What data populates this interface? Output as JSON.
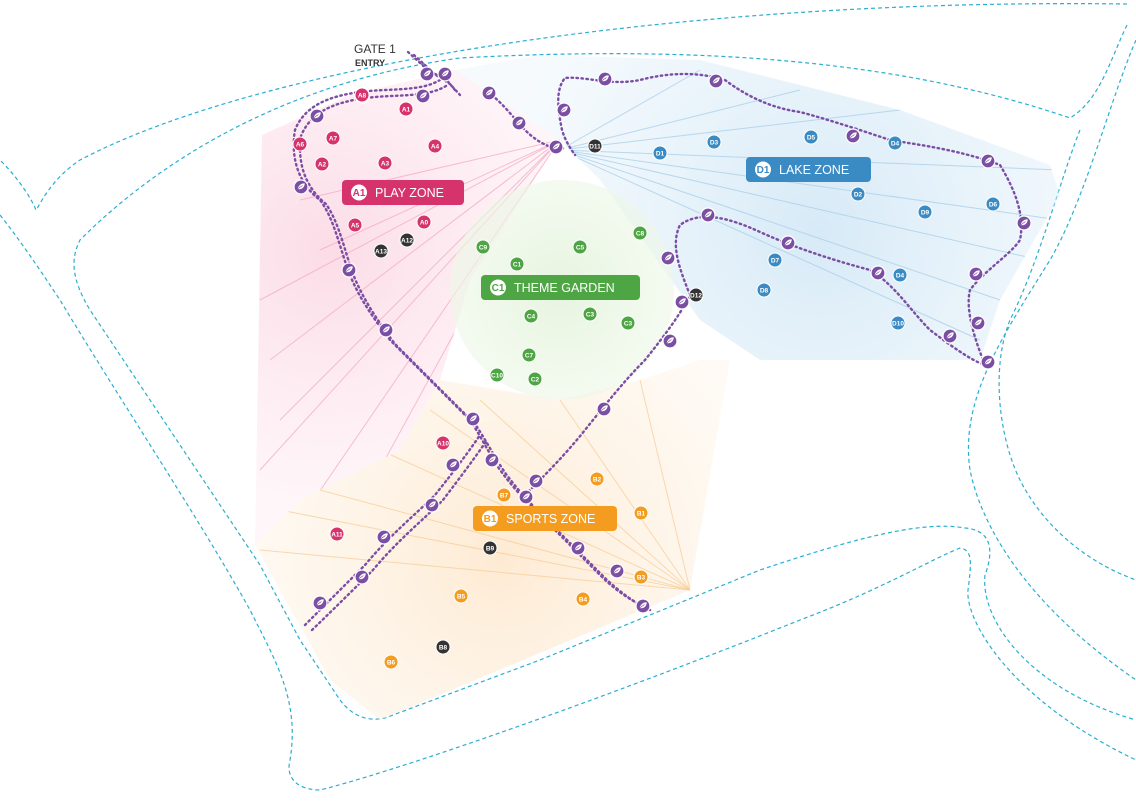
{
  "gate": {
    "title": "GATE 1",
    "subtitle": "ENTRY"
  },
  "colors": {
    "play": "#d6336c",
    "sports": "#f39c1f",
    "theme": "#4ea543",
    "lake": "#3a8ac4",
    "other": "#333333",
    "trail": "#7b4ea3",
    "boundary": "#2aaed0"
  },
  "zones": [
    {
      "id": "A",
      "code": "A1",
      "name": "PLAY ZONE",
      "color": "#d6336c"
    },
    {
      "id": "B",
      "code": "B1",
      "name": "SPORTS ZONE",
      "color": "#f39c1f"
    },
    {
      "id": "C",
      "code": "C1",
      "name": "THEME GARDEN",
      "color": "#4ea543"
    },
    {
      "id": "D",
      "code": "D1",
      "name": "LAKE ZONE",
      "color": "#3a8ac4"
    }
  ],
  "markers": [
    {
      "label": "A8",
      "zone": "play"
    },
    {
      "label": "A1",
      "zone": "play"
    },
    {
      "label": "A6",
      "zone": "play"
    },
    {
      "label": "A7",
      "zone": "play"
    },
    {
      "label": "A2",
      "zone": "play"
    },
    {
      "label": "A3",
      "zone": "play"
    },
    {
      "label": "A4",
      "zone": "play"
    },
    {
      "label": "A5",
      "zone": "play"
    },
    {
      "label": "A0",
      "zone": "play"
    },
    {
      "label": "A12",
      "zone": "other"
    },
    {
      "label": "A13",
      "zone": "other"
    },
    {
      "label": "A10",
      "zone": "play"
    },
    {
      "label": "A11",
      "zone": "play"
    },
    {
      "label": "C9",
      "zone": "theme"
    },
    {
      "label": "C1",
      "zone": "theme"
    },
    {
      "label": "C5",
      "zone": "theme"
    },
    {
      "label": "C8",
      "zone": "theme"
    },
    {
      "label": "C4",
      "zone": "theme"
    },
    {
      "label": "C3",
      "zone": "theme"
    },
    {
      "label": "C3",
      "zone": "theme"
    },
    {
      "label": "C7",
      "zone": "theme"
    },
    {
      "label": "C10",
      "zone": "theme"
    },
    {
      "label": "C2",
      "zone": "theme"
    },
    {
      "label": "D11",
      "zone": "other"
    },
    {
      "label": "D1",
      "zone": "lake"
    },
    {
      "label": "D3",
      "zone": "lake"
    },
    {
      "label": "D5",
      "zone": "lake"
    },
    {
      "label": "D4",
      "zone": "lake"
    },
    {
      "label": "D2",
      "zone": "lake"
    },
    {
      "label": "D9",
      "zone": "lake"
    },
    {
      "label": "D6",
      "zone": "lake"
    },
    {
      "label": "D7",
      "zone": "lake"
    },
    {
      "label": "D4",
      "zone": "lake"
    },
    {
      "label": "D8",
      "zone": "lake"
    },
    {
      "label": "D12",
      "zone": "other"
    },
    {
      "label": "D10",
      "zone": "lake"
    },
    {
      "label": "B2",
      "zone": "sports"
    },
    {
      "label": "B7",
      "zone": "sports"
    },
    {
      "label": "B1",
      "zone": "sports"
    },
    {
      "label": "B9",
      "zone": "other"
    },
    {
      "label": "B3",
      "zone": "sports"
    },
    {
      "label": "B5",
      "zone": "sports"
    },
    {
      "label": "B4",
      "zone": "sports"
    },
    {
      "label": "B8",
      "zone": "other"
    },
    {
      "label": "B6",
      "zone": "sports"
    }
  ]
}
